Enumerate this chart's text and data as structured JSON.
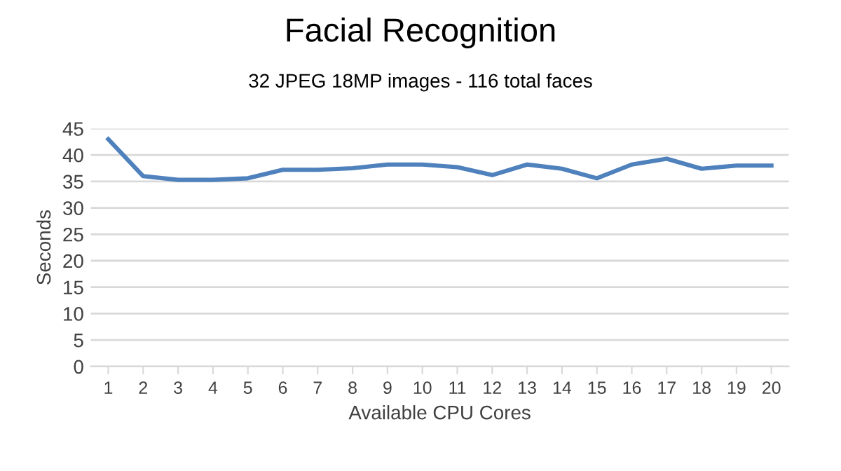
{
  "chart_data": {
    "type": "line",
    "title": "Facial Recognition",
    "subtitle": "32 JPEG 18MP images - 116 total faces",
    "xlabel": "Available CPU Cores",
    "ylabel": "Seconds",
    "categories": [
      "1",
      "2",
      "3",
      "4",
      "5",
      "6",
      "7",
      "8",
      "9",
      "10",
      "11",
      "12",
      "13",
      "14",
      "15",
      "16",
      "17",
      "18",
      "19",
      "20"
    ],
    "series": [
      {
        "color": "#4f81bd",
        "values": [
          43,
          36,
          35.3,
          35.3,
          35.6,
          37.2,
          37.2,
          37.5,
          38.2,
          38.2,
          37.7,
          36.2,
          38.2,
          37.4,
          35.6,
          38.2,
          39.3,
          37.4,
          38,
          38
        ]
      }
    ],
    "ylim": [
      0,
      45
    ],
    "yticks": [
      0,
      5,
      10,
      15,
      20,
      25,
      30,
      35,
      40,
      45
    ],
    "grid": "y",
    "marker": "none",
    "line_style": "solid"
  }
}
